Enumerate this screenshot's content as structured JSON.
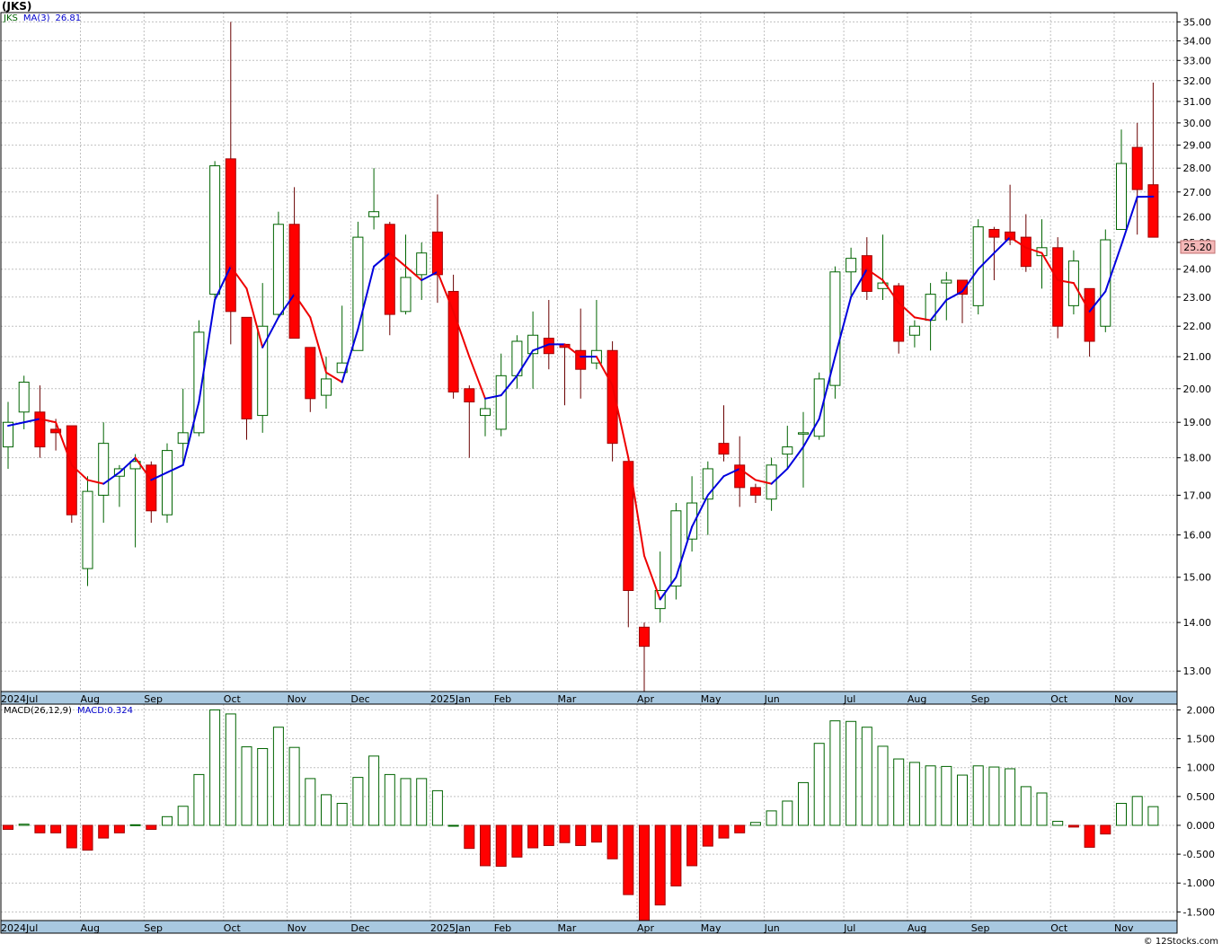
{
  "page": {
    "title": "(JKS)",
    "watermark": "© 12Stocks.com",
    "price_legend": {
      "symbol": "JKS",
      "ma_label": "MA(3)",
      "ma_value": "26.81"
    },
    "macd_legend": {
      "label": "MACD(26,12,9)",
      "value_label": "MACD:0.324"
    },
    "last_price_label": "25.20"
  },
  "colors": {
    "up_candle_stroke": "#006400",
    "down_candle_fill": "#ff0000",
    "ma_rising": "#0000dd",
    "ma_falling": "#ee0000",
    "macd_positive_stroke": "#006400",
    "macd_negative_fill": "#ff0000",
    "axis_band": "#a8c8e0",
    "grid": "#c0c0c0"
  },
  "chart_data": [
    {
      "type": "candlestick",
      "interval": "weekly",
      "y_scale": "log",
      "ylim": [
        12.6,
        35.5
      ],
      "y_ticks": [
        "13.00",
        "14.00",
        "15.00",
        "16.00",
        "17.00",
        "18.00",
        "19.00",
        "20.00",
        "21.00",
        "22.00",
        "23.00",
        "24.00",
        "25.00",
        "26.00",
        "27.00",
        "28.00",
        "29.00",
        "30.00",
        "31.00",
        "32.00",
        "33.00",
        "34.00",
        "35.00"
      ],
      "x_labels": [
        {
          "label": "2024Jul",
          "week": 0
        },
        {
          "label": "Aug",
          "week": 5
        },
        {
          "label": "Sep",
          "week": 9
        },
        {
          "label": "Oct",
          "week": 14
        },
        {
          "label": "Nov",
          "week": 18
        },
        {
          "label": "Dec",
          "week": 22
        },
        {
          "label": "2025Jan",
          "week": 27
        },
        {
          "label": "Feb",
          "week": 31
        },
        {
          "label": "Mar",
          "week": 35
        },
        {
          "label": "Apr",
          "week": 40
        },
        {
          "label": "May",
          "week": 44
        },
        {
          "label": "Jun",
          "week": 48
        },
        {
          "label": "Jul",
          "week": 53
        },
        {
          "label": "Aug",
          "week": 57
        },
        {
          "label": "Sep",
          "week": 61
        },
        {
          "label": "Oct",
          "week": 66
        },
        {
          "label": "Nov",
          "week": 70
        }
      ],
      "candles": [
        {
          "o": 18.3,
          "h": 19.6,
          "l": 17.7,
          "c": 19.0
        },
        {
          "o": 19.3,
          "h": 20.4,
          "l": 18.8,
          "c": 20.2
        },
        {
          "o": 19.3,
          "h": 20.1,
          "l": 18.0,
          "c": 18.3
        },
        {
          "o": 18.8,
          "h": 19.1,
          "l": 18.2,
          "c": 18.7
        },
        {
          "o": 18.9,
          "h": 18.9,
          "l": 16.3,
          "c": 16.5
        },
        {
          "o": 15.2,
          "h": 17.5,
          "l": 14.8,
          "c": 17.1
        },
        {
          "o": 17.0,
          "h": 19.0,
          "l": 16.3,
          "c": 18.4
        },
        {
          "o": 17.5,
          "h": 17.8,
          "l": 16.7,
          "c": 17.7
        },
        {
          "o": 17.7,
          "h": 18.1,
          "l": 15.7,
          "c": 17.9
        },
        {
          "o": 17.8,
          "h": 17.9,
          "l": 16.3,
          "c": 16.6
        },
        {
          "o": 16.5,
          "h": 18.4,
          "l": 16.3,
          "c": 18.2
        },
        {
          "o": 18.4,
          "h": 20.0,
          "l": 17.8,
          "c": 18.7
        },
        {
          "o": 18.7,
          "h": 22.2,
          "l": 18.6,
          "c": 21.8
        },
        {
          "o": 23.1,
          "h": 28.3,
          "l": 22.9,
          "c": 28.1
        },
        {
          "o": 28.4,
          "h": 35.0,
          "l": 21.4,
          "c": 22.5
        },
        {
          "o": 22.3,
          "h": 22.3,
          "l": 18.5,
          "c": 19.1
        },
        {
          "o": 19.2,
          "h": 23.5,
          "l": 18.7,
          "c": 22.0
        },
        {
          "o": 22.4,
          "h": 26.2,
          "l": 22.3,
          "c": 25.7
        },
        {
          "o": 25.7,
          "h": 27.2,
          "l": 21.7,
          "c": 21.6
        },
        {
          "o": 21.3,
          "h": 21.3,
          "l": 19.3,
          "c": 19.7
        },
        {
          "o": 19.8,
          "h": 21.0,
          "l": 19.4,
          "c": 20.3
        },
        {
          "o": 20.5,
          "h": 22.7,
          "l": 20.5,
          "c": 20.8
        },
        {
          "o": 21.2,
          "h": 25.8,
          "l": 21.3,
          "c": 25.2
        },
        {
          "o": 26.0,
          "h": 28.0,
          "l": 25.5,
          "c": 26.2
        },
        {
          "o": 25.7,
          "h": 25.8,
          "l": 21.7,
          "c": 22.4
        },
        {
          "o": 22.5,
          "h": 25.3,
          "l": 22.4,
          "c": 23.7
        },
        {
          "o": 23.8,
          "h": 25.0,
          "l": 22.9,
          "c": 24.6
        },
        {
          "o": 25.4,
          "h": 26.9,
          "l": 22.8,
          "c": 23.8
        },
        {
          "o": 23.2,
          "h": 23.8,
          "l": 19.7,
          "c": 19.9
        },
        {
          "o": 20.0,
          "h": 20.1,
          "l": 18.0,
          "c": 19.6
        },
        {
          "o": 19.2,
          "h": 19.7,
          "l": 18.6,
          "c": 19.4
        },
        {
          "o": 18.8,
          "h": 21.1,
          "l": 18.6,
          "c": 20.4
        },
        {
          "o": 20.4,
          "h": 21.7,
          "l": 20.0,
          "c": 21.5
        },
        {
          "o": 21.1,
          "h": 22.5,
          "l": 20.0,
          "c": 21.7
        },
        {
          "o": 21.6,
          "h": 22.9,
          "l": 20.6,
          "c": 21.1
        },
        {
          "o": 21.4,
          "h": 21.4,
          "l": 19.5,
          "c": 21.3
        },
        {
          "o": 21.2,
          "h": 22.6,
          "l": 19.7,
          "c": 20.6
        },
        {
          "o": 20.8,
          "h": 22.9,
          "l": 20.6,
          "c": 21.2
        },
        {
          "o": 21.2,
          "h": 21.5,
          "l": 17.9,
          "c": 18.4
        },
        {
          "o": 17.9,
          "h": 17.9,
          "l": 13.9,
          "c": 14.7
        },
        {
          "o": 13.9,
          "h": 14.0,
          "l": 12.5,
          "c": 13.5
        },
        {
          "o": 14.3,
          "h": 15.6,
          "l": 14.0,
          "c": 14.7
        },
        {
          "o": 14.8,
          "h": 16.8,
          "l": 14.5,
          "c": 16.6
        },
        {
          "o": 15.9,
          "h": 17.5,
          "l": 15.6,
          "c": 16.8
        },
        {
          "o": 16.9,
          "h": 17.9,
          "l": 16.0,
          "c": 17.7
        },
        {
          "o": 18.4,
          "h": 19.5,
          "l": 17.9,
          "c": 18.1
        },
        {
          "o": 17.8,
          "h": 18.6,
          "l": 16.7,
          "c": 17.2
        },
        {
          "o": 17.2,
          "h": 17.3,
          "l": 16.8,
          "c": 17.0
        },
        {
          "o": 16.9,
          "h": 18.0,
          "l": 16.6,
          "c": 17.8
        },
        {
          "o": 18.1,
          "h": 18.9,
          "l": 17.7,
          "c": 18.3
        },
        {
          "o": 18.7,
          "h": 19.3,
          "l": 17.2,
          "c": 18.7
        },
        {
          "o": 18.6,
          "h": 20.5,
          "l": 18.5,
          "c": 20.3
        },
        {
          "o": 20.1,
          "h": 24.1,
          "l": 19.7,
          "c": 23.9
        },
        {
          "o": 23.9,
          "h": 24.8,
          "l": 23.0,
          "c": 24.4
        },
        {
          "o": 24.5,
          "h": 25.2,
          "l": 22.9,
          "c": 23.2
        },
        {
          "o": 23.3,
          "h": 25.3,
          "l": 22.9,
          "c": 23.5
        },
        {
          "o": 23.4,
          "h": 23.5,
          "l": 21.1,
          "c": 21.5
        },
        {
          "o": 21.7,
          "h": 22.2,
          "l": 21.3,
          "c": 22.0
        },
        {
          "o": 22.2,
          "h": 23.5,
          "l": 21.2,
          "c": 23.1
        },
        {
          "o": 23.5,
          "h": 23.9,
          "l": 22.2,
          "c": 23.6
        },
        {
          "o": 23.6,
          "h": 23.6,
          "l": 22.1,
          "c": 23.1
        },
        {
          "o": 22.7,
          "h": 25.9,
          "l": 22.4,
          "c": 25.6
        },
        {
          "o": 25.5,
          "h": 25.6,
          "l": 23.6,
          "c": 25.2
        },
        {
          "o": 25.4,
          "h": 27.3,
          "l": 24.9,
          "c": 25.1
        },
        {
          "o": 25.2,
          "h": 26.1,
          "l": 23.9,
          "c": 24.1
        },
        {
          "o": 24.5,
          "h": 25.9,
          "l": 23.3,
          "c": 24.8
        },
        {
          "o": 24.8,
          "h": 25.2,
          "l": 21.6,
          "c": 22.0
        },
        {
          "o": 22.7,
          "h": 24.7,
          "l": 22.4,
          "c": 24.3
        },
        {
          "o": 23.3,
          "h": 23.3,
          "l": 21.0,
          "c": 21.5
        },
        {
          "o": 22.0,
          "h": 25.5,
          "l": 21.8,
          "c": 25.1
        },
        {
          "o": 25.5,
          "h": 29.7,
          "l": 25.5,
          "c": 28.2
        },
        {
          "o": 28.9,
          "h": 30.0,
          "l": 25.3,
          "c": 27.1
        },
        {
          "o": 27.3,
          "h": 31.9,
          "l": 25.2,
          "c": 25.2
        }
      ],
      "ma3": [
        18.9,
        19.0,
        19.1,
        19.0,
        17.8,
        17.4,
        17.3,
        17.6,
        18.0,
        17.4,
        17.6,
        17.8,
        19.6,
        22.9,
        24.1,
        23.3,
        21.3,
        22.3,
        23.1,
        22.3,
        20.5,
        20.2,
        21.9,
        24.1,
        24.6,
        24.1,
        23.6,
        23.9,
        22.5,
        21.0,
        19.7,
        19.8,
        20.4,
        21.2,
        21.4,
        21.4,
        21.0,
        21.0,
        20.1,
        18.0,
        15.5,
        14.5,
        15.0,
        16.2,
        17.0,
        17.5,
        17.7,
        17.4,
        17.3,
        17.7,
        18.3,
        19.1,
        21.0,
        23.0,
        24.0,
        23.6,
        22.8,
        22.3,
        22.2,
        22.9,
        23.2,
        24.0,
        24.6,
        25.2,
        24.8,
        24.6,
        23.6,
        23.5,
        22.5,
        23.2,
        24.9,
        26.8,
        26.81
      ]
    },
    {
      "type": "bar",
      "title": "MACD(26,12,9)",
      "ylim": [
        -1.65,
        2.1
      ],
      "y_ticks": [
        "-1.500",
        "-1.000",
        "-0.500",
        "0.000",
        "0.500",
        "1.000",
        "1.500",
        "2.000"
      ],
      "values": [
        -0.07,
        0.02,
        -0.13,
        -0.13,
        -0.39,
        -0.43,
        -0.22,
        -0.13,
        0.01,
        -0.07,
        0.15,
        0.33,
        0.88,
        2.0,
        1.93,
        1.36,
        1.33,
        1.7,
        1.35,
        0.81,
        0.53,
        0.38,
        0.83,
        1.2,
        0.88,
        0.81,
        0.81,
        0.6,
        0.0,
        -0.4,
        -0.7,
        -0.71,
        -0.55,
        -0.39,
        -0.35,
        -0.3,
        -0.35,
        -0.29,
        -0.58,
        -1.2,
        -1.65,
        -1.38,
        -1.05,
        -0.7,
        -0.36,
        -0.22,
        -0.13,
        0.05,
        0.25,
        0.42,
        0.74,
        1.42,
        1.81,
        1.8,
        1.7,
        1.37,
        1.15,
        1.09,
        1.03,
        1.02,
        0.87,
        1.03,
        1.01,
        0.98,
        0.67,
        0.56,
        0.07,
        -0.03,
        -0.38,
        -0.15,
        0.38,
        0.5,
        0.324
      ]
    }
  ]
}
